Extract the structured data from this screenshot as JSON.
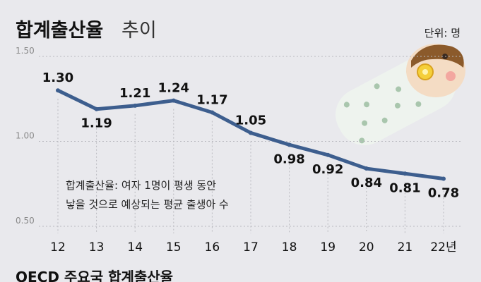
{
  "header": {
    "title_main": "합계출산율",
    "title_sub": "추이",
    "unit": "단위: 명"
  },
  "colors": {
    "line": "#3d5e8e",
    "background": "#e9e9ed",
    "grid": "#b9b9bf"
  },
  "chart_data": {
    "type": "line",
    "title": "합계출산율 추이",
    "xlabel": "",
    "ylabel": "",
    "unit": "명",
    "categories": [
      "12",
      "13",
      "14",
      "15",
      "16",
      "17",
      "18",
      "19",
      "20",
      "21",
      "22년"
    ],
    "values": [
      1.3,
      1.19,
      1.21,
      1.24,
      1.17,
      1.05,
      0.98,
      0.92,
      0.84,
      0.81,
      0.78
    ],
    "value_labels": [
      "1.30",
      "1.19",
      "1.21",
      "1.24",
      "1.17",
      "1.05",
      "0.98",
      "0.92",
      "0.84",
      "0.81",
      "0.78"
    ],
    "ylim": [
      0.5,
      1.5
    ],
    "yticks": [
      1.5,
      1.0,
      0.5
    ],
    "ytick_labels": [
      "1.50",
      "1.00",
      "0.50"
    ],
    "grid": true
  },
  "note": {
    "line1": "합계출산율: 여자 1명이 평생 동안",
    "line2": "낳을 것으로 예상되는 평균 출생아 수"
  },
  "footer": {
    "subtitle": "OECD 주요국 합계출산율"
  },
  "illustration": {
    "icon": "swaddled-baby-icon"
  }
}
